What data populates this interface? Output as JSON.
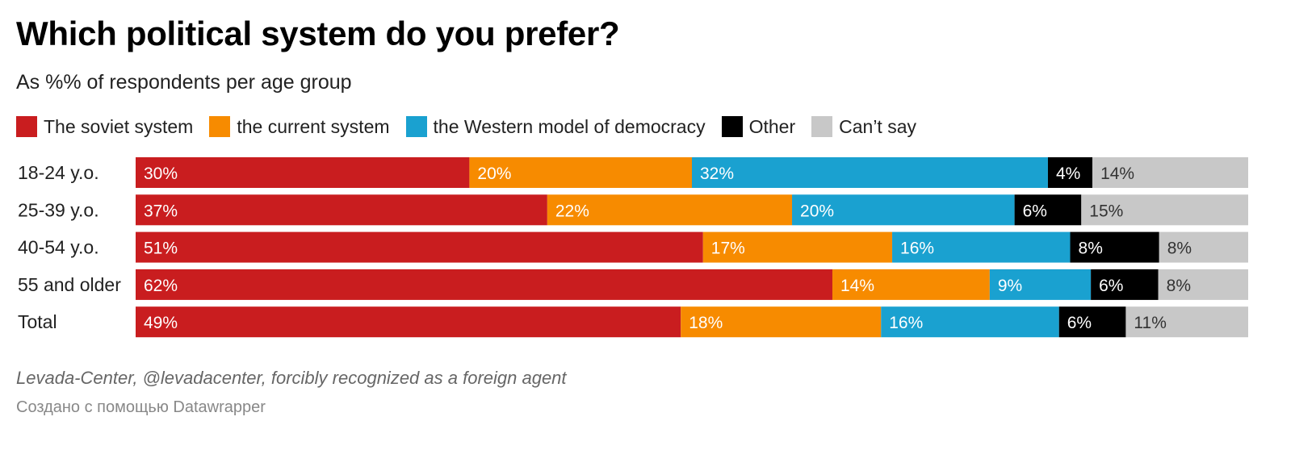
{
  "chart_data": {
    "type": "bar",
    "orientation": "horizontal",
    "stacked": true,
    "title": "Which political system do you prefer?",
    "subtitle": "As %% of respondents per age group",
    "categories": [
      "18-24 y.o.",
      "25-39 y.o.",
      "40-54 y.o.",
      "55 and older",
      "Total"
    ],
    "series": [
      {
        "name": "The soviet system",
        "color": "#c91d1f",
        "label_color": "#ffffff",
        "values": [
          30,
          37,
          51,
          62,
          49
        ]
      },
      {
        "name": "the current system",
        "color": "#f78b00",
        "label_color": "#ffffff",
        "values": [
          20,
          22,
          17,
          14,
          18
        ]
      },
      {
        "name": "the Western model of democracy",
        "color": "#1aa1d0",
        "label_color": "#ffffff",
        "values": [
          32,
          20,
          16,
          9,
          16
        ]
      },
      {
        "name": "Other",
        "color": "#000000",
        "label_color": "#ffffff",
        "values": [
          4,
          6,
          8,
          6,
          6
        ]
      },
      {
        "name": "Can’t say",
        "color": "#c8c8c8",
        "label_color": "#333333",
        "values": [
          14,
          15,
          8,
          8,
          11
        ]
      }
    ],
    "value_suffix": "%",
    "xlabel": "",
    "ylabel": "",
    "legend_position": "top-left"
  },
  "source": "Levada-Center, @levadacenter, forcibly recognized as a foreign agent",
  "credit": "Создано с помощью Datawrapper"
}
